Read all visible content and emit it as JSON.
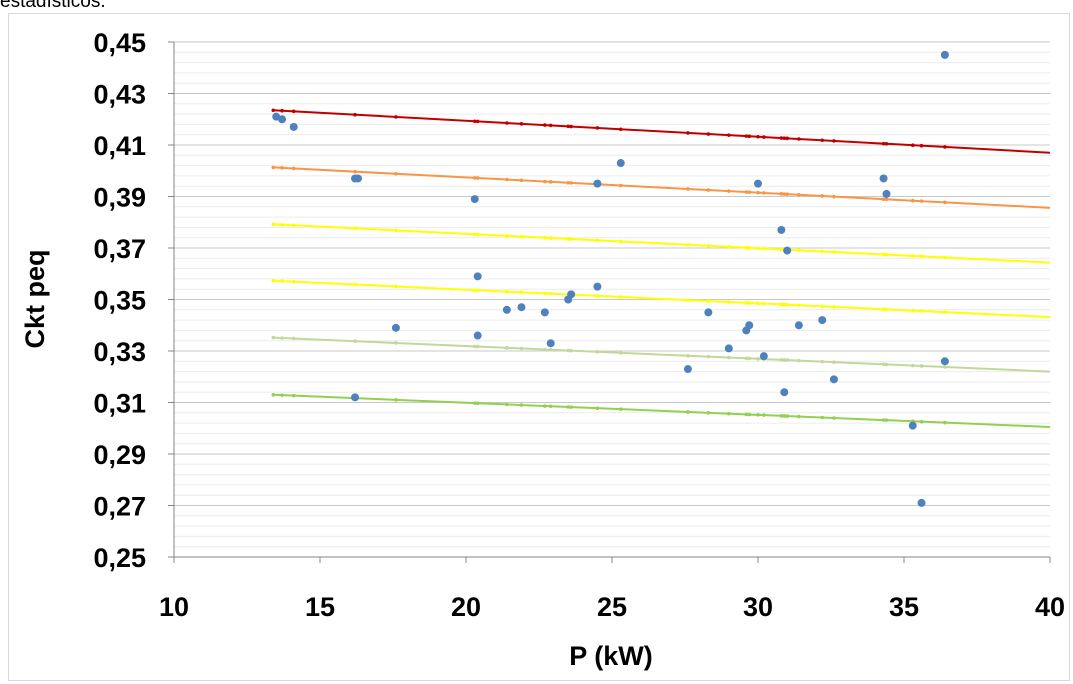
{
  "page": {
    "top_text": "estadísticos."
  },
  "chart_data": {
    "type": "scatter",
    "title": "",
    "xlabel": "P (kW)",
    "ylabel": "Ckt peq",
    "xlim": [
      10,
      40
    ],
    "ylim": [
      0.25,
      0.45
    ],
    "x_ticks": [
      "10",
      "15",
      "20",
      "25",
      "30",
      "35",
      "40"
    ],
    "y_ticks": [
      "0,25",
      "0,27",
      "0,29",
      "0,31",
      "0,33",
      "0,35",
      "0,37",
      "0,39",
      "0,41",
      "0,43",
      "0,45"
    ],
    "grid": {
      "major_y": true,
      "minor_y": true
    },
    "legend": "none",
    "points": {
      "color": "#4f81bd",
      "data": [
        [
          13.5,
          0.421
        ],
        [
          13.7,
          0.42
        ],
        [
          14.1,
          0.417
        ],
        [
          16.2,
          0.397
        ],
        [
          16.3,
          0.397
        ],
        [
          16.2,
          0.312
        ],
        [
          17.6,
          0.339
        ],
        [
          20.3,
          0.389
        ],
        [
          20.4,
          0.359
        ],
        [
          20.4,
          0.336
        ],
        [
          21.4,
          0.346
        ],
        [
          21.9,
          0.347
        ],
        [
          22.7,
          0.345
        ],
        [
          22.9,
          0.333
        ],
        [
          23.5,
          0.35
        ],
        [
          23.6,
          0.352
        ],
        [
          24.5,
          0.355
        ],
        [
          24.5,
          0.395
        ],
        [
          25.3,
          0.403
        ],
        [
          27.6,
          0.323
        ],
        [
          28.3,
          0.345
        ],
        [
          29.0,
          0.331
        ],
        [
          29.6,
          0.338
        ],
        [
          29.7,
          0.34
        ],
        [
          30.0,
          0.395
        ],
        [
          30.2,
          0.328
        ],
        [
          30.8,
          0.377
        ],
        [
          30.9,
          0.314
        ],
        [
          31.0,
          0.369
        ],
        [
          31.4,
          0.34
        ],
        [
          32.2,
          0.342
        ],
        [
          32.6,
          0.319
        ],
        [
          34.3,
          0.397
        ],
        [
          34.4,
          0.391
        ],
        [
          35.3,
          0.301
        ],
        [
          35.6,
          0.271
        ],
        [
          36.4,
          0.445
        ],
        [
          36.4,
          0.326
        ]
      ]
    },
    "series": [
      {
        "color": "#c00000",
        "x": [
          13.4,
          40
        ],
        "y": [
          0.4235,
          0.407
        ]
      },
      {
        "color": "#f79646",
        "x": [
          13.4,
          40
        ],
        "y": [
          0.4013,
          0.3856
        ]
      },
      {
        "color": "#ffff00",
        "x": [
          13.4,
          40
        ],
        "y": [
          0.3792,
          0.3643
        ]
      },
      {
        "color": "#ffff00",
        "x": [
          13.4,
          40
        ],
        "y": [
          0.3573,
          0.3432
        ]
      },
      {
        "color": "#c4d79b",
        "x": [
          13.4,
          40
        ],
        "y": [
          0.3352,
          0.322
        ]
      },
      {
        "color": "#92d050",
        "x": [
          13.4,
          40
        ],
        "y": [
          0.313,
          0.3005
        ]
      }
    ],
    "line_marker_x": [
      13.4,
      13.7,
      14.1,
      16.2,
      17.6,
      20.3,
      20.4,
      21.4,
      21.9,
      22.7,
      22.9,
      23.5,
      23.6,
      24.5,
      25.3,
      27.6,
      28.3,
      29.0,
      29.6,
      29.7,
      30.0,
      30.2,
      30.8,
      30.9,
      31.0,
      31.4,
      32.2,
      32.6,
      34.3,
      34.4,
      35.3,
      35.6,
      36.4
    ]
  }
}
